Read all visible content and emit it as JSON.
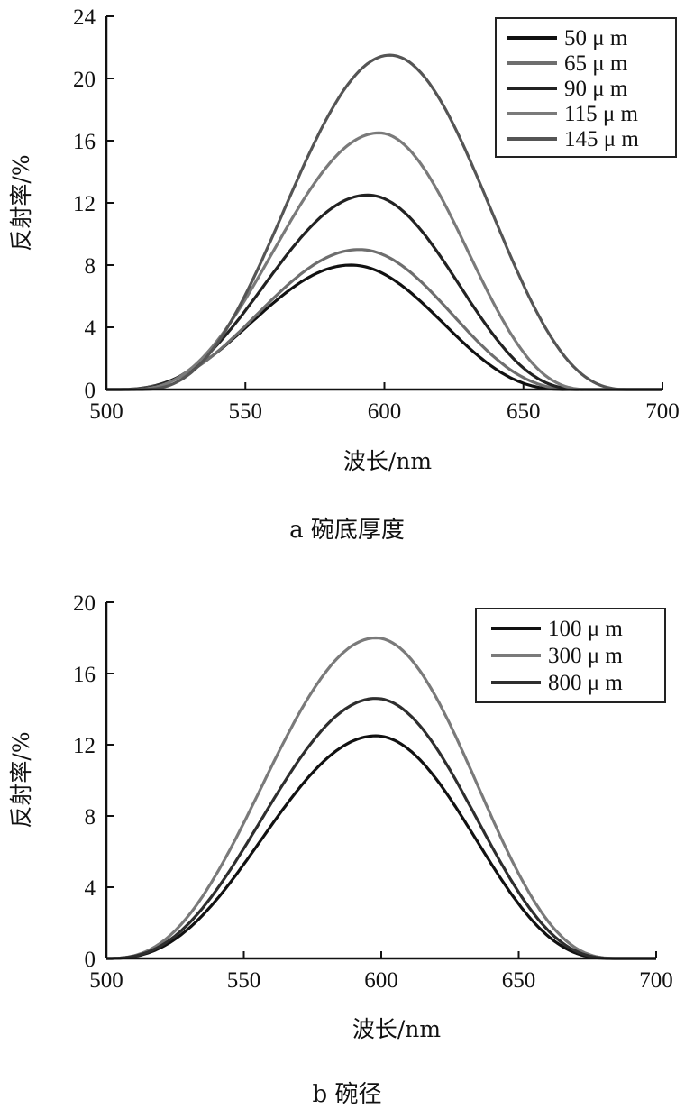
{
  "chart_data": [
    {
      "type": "line",
      "caption": "a 碗底厚度",
      "xlabel": "波长/nm",
      "ylabel": "反射率/%",
      "xlim": [
        500,
        700
      ],
      "ylim": [
        0,
        24
      ],
      "xticks": [
        500,
        550,
        600,
        650,
        700
      ],
      "yticks": [
        0,
        4,
        8,
        12,
        16,
        20,
        24
      ],
      "legend_position": "top-right",
      "series": [
        {
          "name": "50 μ m",
          "color": "#111111",
          "start": 503,
          "peak_x": 588,
          "peak_y": 8.0,
          "end": 666
        },
        {
          "name": "65 μ m",
          "color": "#6e6e6e",
          "start": 504,
          "peak_x": 591,
          "peak_y": 9.0,
          "end": 670
        },
        {
          "name": "90 μ m",
          "color": "#222222",
          "start": 506,
          "peak_x": 594,
          "peak_y": 12.5,
          "end": 672
        },
        {
          "name": "115 μ m",
          "color": "#7a7a7a",
          "start": 508,
          "peak_x": 598,
          "peak_y": 16.5,
          "end": 674
        },
        {
          "name": "145 μ m",
          "color": "#555555",
          "start": 512,
          "peak_x": 602,
          "peak_y": 21.5,
          "end": 688
        }
      ]
    },
    {
      "type": "line",
      "caption": "b 碗径",
      "xlabel": "波长/nm",
      "ylabel": "反射率/%",
      "xlim": [
        500,
        700
      ],
      "ylim": [
        0,
        20
      ],
      "xticks": [
        500,
        550,
        600,
        650,
        700
      ],
      "yticks": [
        0,
        4,
        8,
        12,
        16,
        20
      ],
      "legend_position": "top-right",
      "series": [
        {
          "name": "100 μ m",
          "color": "#111111",
          "start": 500,
          "peak_x": 598,
          "peak_y": 12.5,
          "end": 684
        },
        {
          "name": "300 μ m",
          "color": "#7a7a7a",
          "start": 500,
          "peak_x": 598,
          "peak_y": 18.0,
          "end": 686
        },
        {
          "name": "800 μ m",
          "color": "#2e2e2e",
          "start": 500,
          "peak_x": 598,
          "peak_y": 14.6,
          "end": 685
        }
      ]
    }
  ]
}
